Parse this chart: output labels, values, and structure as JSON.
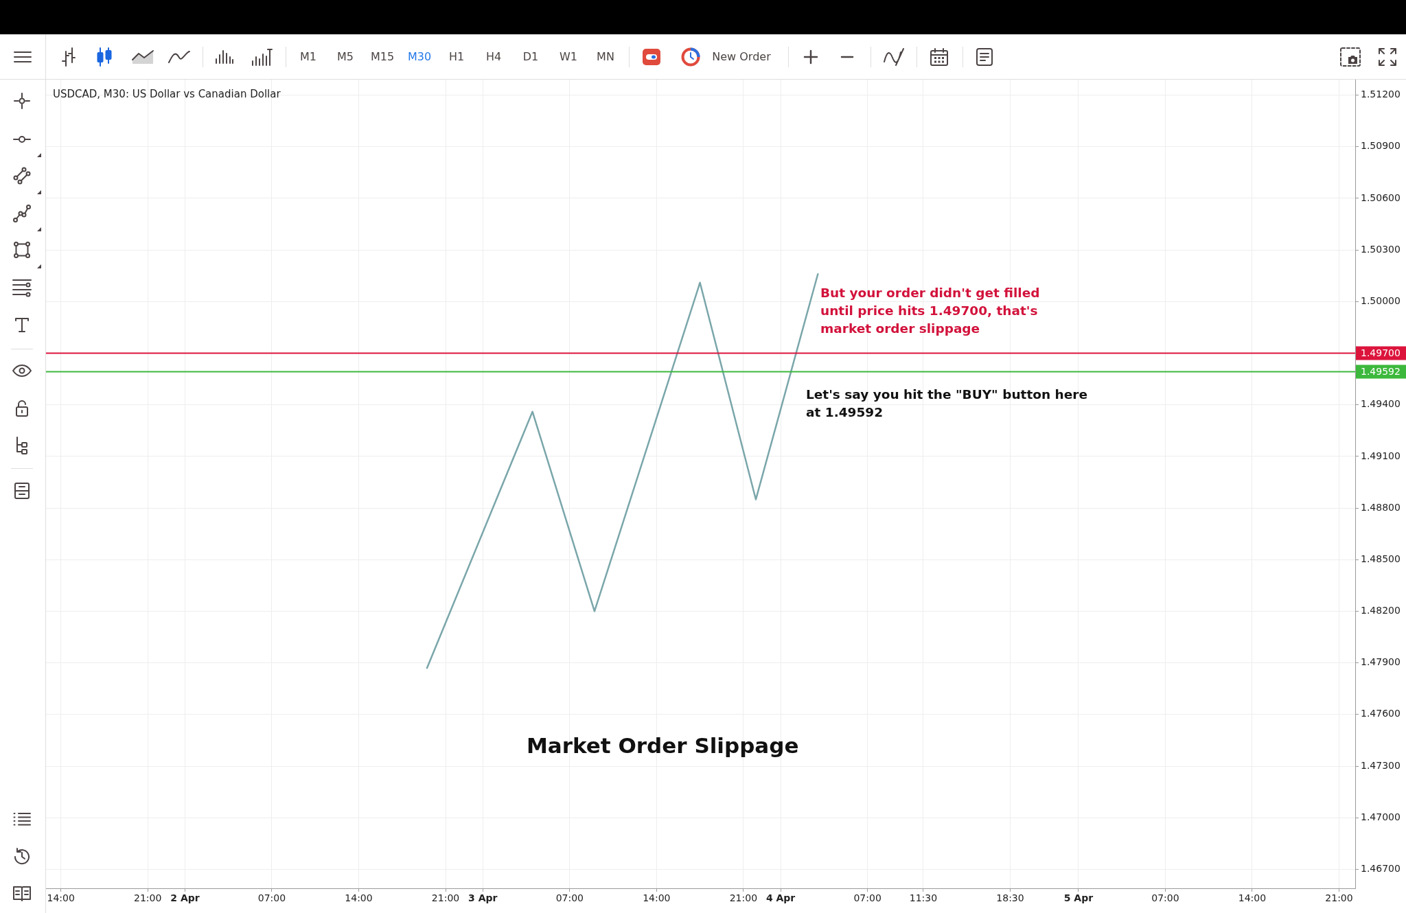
{
  "chart_data": {
    "type": "line",
    "title": "USDCAD, M30: US Dollar vs Canadian Dollar",
    "x": [
      "--04-02T19:30",
      "--04-03T04:00",
      "--04-03T09:00",
      "--04-03T17:30",
      "--04-03T22:00",
      "--04-04T03:00"
    ],
    "series": [
      {
        "color": "#7aa6aa",
        "values": [
          1.4787,
          1.4936,
          1.482,
          1.5011,
          1.4885,
          1.5016
        ]
      }
    ],
    "xlim": [
      "--04-01T12:48",
      "--04-05T22:18"
    ],
    "xticks": [
      {
        "value": "--04-01T14:00",
        "label": "14:00"
      },
      {
        "value": "--04-01T21:00",
        "label": "21:00"
      },
      {
        "value": "--04-02",
        "label": "2 Apr"
      },
      {
        "value": "--04-02T07:00",
        "label": "07:00"
      },
      {
        "value": "--04-02T14:00",
        "label": "14:00"
      },
      {
        "value": "--04-02T21:00",
        "label": "21:00"
      },
      {
        "value": "--04-03",
        "label": "3 Apr"
      },
      {
        "value": "--04-03T07:00",
        "label": "07:00"
      },
      {
        "value": "--04-03T14:00",
        "label": "14:00"
      },
      {
        "value": "--04-03T21:00",
        "label": "21:00"
      },
      {
        "value": "--04-04",
        "label": "4 Apr"
      },
      {
        "value": "--04-04T07:00",
        "label": "07:00"
      },
      {
        "value": "--04-04T11:30",
        "label": "11:30"
      },
      {
        "value": "--04-04T18:30",
        "label": "18:30"
      },
      {
        "value": "--04-05",
        "label": "5 Apr"
      },
      {
        "value": "--04-05T07:00",
        "label": "07:00"
      },
      {
        "value": "--04-05T14:00",
        "label": "14:00"
      },
      {
        "value": "--04-05T21:00",
        "label": "21:00"
      }
    ],
    "ylim": [
      1.4659,
      1.5129
    ],
    "yticks": [
      {
        "value": 1.467,
        "label": "1.46700"
      },
      {
        "value": 1.47,
        "label": "1.47000"
      },
      {
        "value": 1.473,
        "label": "1.47300"
      },
      {
        "value": 1.476,
        "label": "1.47600"
      },
      {
        "value": 1.479,
        "label": "1.47900"
      },
      {
        "value": 1.482,
        "label": "1.48200"
      },
      {
        "value": 1.485,
        "label": "1.48500"
      },
      {
        "value": 1.488,
        "label": "1.48800"
      },
      {
        "value": 1.491,
        "label": "1.49100"
      },
      {
        "value": 1.494,
        "label": "1.49400"
      },
      {
        "value": 1.5,
        "label": "1.50000"
      },
      {
        "value": 1.503,
        "label": "1.50300"
      },
      {
        "value": 1.506,
        "label": "1.50600"
      },
      {
        "value": 1.509,
        "label": "1.50900"
      },
      {
        "value": 1.512,
        "label": "1.51200"
      }
    ],
    "grid": true,
    "ref_lines": [
      {
        "axis": "y",
        "value": 1.497,
        "label": "1.49700",
        "color": "#dc143c"
      },
      {
        "axis": "y",
        "value": 1.49592,
        "label": "1.49592",
        "color": "#3cb83c"
      }
    ],
    "annotations": [
      "But your order didn't get filled until price hits 1.49700, that's market order slippage",
      "Let's say you hit the \"BUY\" button here at 1.49592",
      "Market Order Slippage",
      "M1",
      "M5",
      "M15",
      "M30",
      "H1",
      "H4",
      "D1",
      "W1",
      "MN",
      "New Order"
    ]
  }
}
